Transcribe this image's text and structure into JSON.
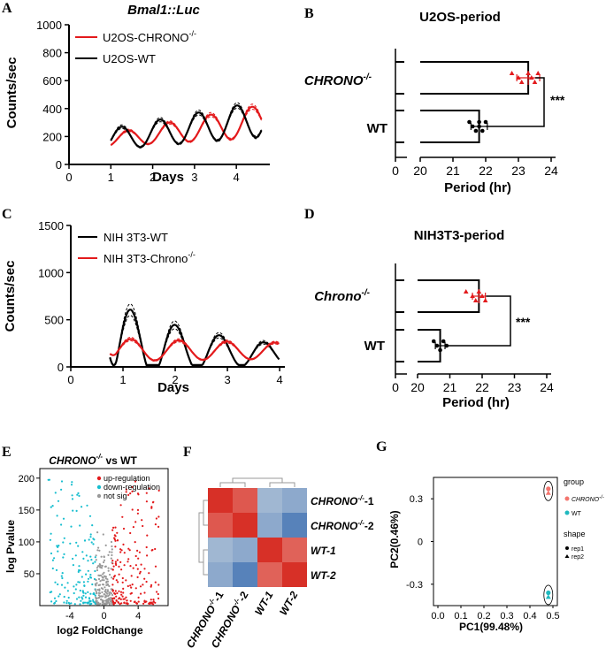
{
  "colors": {
    "red": "#e31a1c",
    "black": "#000000",
    "cyan": "#17becf",
    "grey": "#999999",
    "salmon": "#f4756e",
    "teal": "#20b9bf"
  },
  "panels": {
    "A": "A",
    "B": "B",
    "C": "C",
    "D": "D",
    "E": "E",
    "F": "F",
    "G": "G"
  },
  "chart_data": [
    {
      "id": "A",
      "type": "line",
      "title": "Bmal1::Luc",
      "xlabel": "Days",
      "ylabel": "Counts/sec",
      "xlim": [
        0,
        4.8
      ],
      "ylim": [
        0,
        1000
      ],
      "xticks": [
        "0",
        "1",
        "2",
        "3",
        "4"
      ],
      "yticks": [
        "0",
        "200",
        "400",
        "600",
        "800",
        "1000"
      ],
      "legend": [
        "U2OS-CHRONO",
        "-/-",
        "U2OS-WT"
      ],
      "series": [
        {
          "name": "U2OS-CHRONO-/-",
          "color": "red",
          "baseline": 160,
          "trend": 30,
          "amp0": 90,
          "amp_growth": 40,
          "period_days": 0.99,
          "peak_day": 1.4,
          "start": 1.0,
          "end": 4.6
        },
        {
          "name": "U2OS-WT",
          "color": "black",
          "baseline": 155,
          "trend": 35,
          "amp0": 150,
          "amp_growth": 30,
          "period_days": 0.92,
          "peak_day": 1.25,
          "start": 1.0,
          "end": 4.6
        }
      ]
    },
    {
      "id": "B",
      "type": "bar",
      "title": "U2OS-period",
      "xlabel": "Period (hr)",
      "xlim": [
        20,
        24
      ],
      "xticks": [
        "0",
        "20",
        "21",
        "22",
        "23",
        "24"
      ],
      "categories": [
        "CHRONO",
        "WT"
      ],
      "category_sup": [
        "-/-",
        ""
      ],
      "values": [
        23.3,
        21.8
      ],
      "errors": [
        0.35,
        0.25
      ],
      "points": [
        [
          22.8,
          23.0,
          23.1,
          23.3,
          23.4,
          23.5,
          23.6
        ],
        [
          21.5,
          21.6,
          21.7,
          21.8,
          21.8,
          21.9,
          22.0
        ]
      ],
      "significance": "***"
    },
    {
      "id": "C",
      "type": "line",
      "xlabel": "Days",
      "ylabel": "Counts/sec",
      "xlim": [
        0,
        4.1
      ],
      "ylim": [
        0,
        1500
      ],
      "xticks": [
        "0",
        "1",
        "2",
        "3",
        "4"
      ],
      "yticks": [
        "0",
        "500",
        "1000",
        "1500"
      ],
      "legend": [
        "NIH 3T3-WT",
        "NIH 3T3-Chrono",
        "-/-"
      ],
      "series": [
        {
          "name": "NIH 3T3-WT",
          "color": "black",
          "baseline": 100,
          "amp0": 750,
          "decay": 0.45,
          "period_days": 0.85,
          "peak_day": 1.15,
          "start": 0.75,
          "end": 4.0
        },
        {
          "name": "NIH 3T3-Chrono-/-",
          "color": "red",
          "baseline": 140,
          "amp0": 230,
          "decay": 0.1,
          "period_days": 0.92,
          "peak_day": 1.15,
          "start": 0.75,
          "end": 4.0
        }
      ]
    },
    {
      "id": "D",
      "type": "bar",
      "title": "NIH3T3-period",
      "xlabel": "Period (hr)",
      "xlim": [
        20,
        24
      ],
      "xticks": [
        "0",
        "20",
        "21",
        "22",
        "23",
        "24"
      ],
      "categories": [
        "Chrono",
        "WT"
      ],
      "category_sup": [
        "-/-",
        ""
      ],
      "values": [
        21.9,
        20.7
      ],
      "errors": [
        0.2,
        0.15
      ],
      "points": [
        [
          21.5,
          21.7,
          21.8,
          21.9,
          22.0,
          22.1
        ],
        [
          20.5,
          20.6,
          20.7,
          20.8,
          20.9
        ]
      ],
      "significance": "***"
    },
    {
      "id": "E",
      "type": "scatter",
      "title": "CHRONO",
      "title_sup": "-/-",
      "title_suffix": " vs WT",
      "xlabel": "log2 FoldChange",
      "ylabel": "log Pvalue",
      "xlim": [
        -7.5,
        7.5
      ],
      "ylim": [
        0,
        215
      ],
      "xticks": [
        "-4",
        "0",
        "4"
      ],
      "xtick_values": [
        -4,
        0,
        4
      ],
      "yticks": [
        "50",
        "100",
        "150",
        "200"
      ],
      "ytick_values": [
        50,
        100,
        150,
        200
      ],
      "legend": [
        "up-regulation",
        "down-regulation",
        "not sig"
      ]
    },
    {
      "id": "F",
      "type": "heatmap",
      "rows": [
        "CHRONO-/--1",
        "CHRONO-/--2",
        "WT-1",
        "WT-2"
      ],
      "row_labels": [
        [
          "CHRONO",
          "-/-",
          "-1"
        ],
        [
          "CHRONO",
          "-/-",
          "-2"
        ],
        [
          "WT-1",
          "",
          ""
        ],
        [
          "WT-2",
          "",
          ""
        ]
      ],
      "col_labels": [
        [
          "CHRONO",
          "-/-",
          "-1"
        ],
        [
          "CHRONO",
          "-/-",
          "-2"
        ],
        [
          "WT-1",
          "",
          ""
        ],
        [
          "WT-2",
          "",
          ""
        ]
      ],
      "values": [
        [
          1.0,
          0.8,
          -0.5,
          -0.6
        ],
        [
          0.8,
          1.0,
          -0.6,
          -0.9
        ],
        [
          -0.5,
          -0.6,
          1.0,
          0.75
        ],
        [
          -0.6,
          -0.9,
          0.75,
          1.0
        ]
      ]
    },
    {
      "id": "G",
      "type": "scatter",
      "xlabel": "PC1(99.48%)",
      "ylabel": "PC2(0.46%)",
      "xlim": [
        0,
        0.5
      ],
      "ylim": [
        -0.45,
        0.45
      ],
      "xticks": [
        "0.0",
        "0.1",
        "0.2",
        "0.3",
        "0.4",
        "0.5"
      ],
      "xtick_values": [
        0,
        0.1,
        0.2,
        0.3,
        0.4,
        0.5
      ],
      "yticks": [
        "0.3",
        "0",
        "-0.3"
      ],
      "ytick_values": [
        0.3,
        0,
        -0.3
      ],
      "points": [
        {
          "group": "CHRONO",
          "shape": "rep1",
          "x": 0.48,
          "y": 0.37
        },
        {
          "group": "CHRONO",
          "shape": "rep2",
          "x": 0.48,
          "y": 0.34
        },
        {
          "group": "WT",
          "shape": "rep1",
          "x": 0.48,
          "y": -0.36
        },
        {
          "group": "WT",
          "shape": "rep2",
          "x": 0.48,
          "y": -0.39
        }
      ],
      "legend_group_title": "group",
      "legend_groups": [
        [
          "CHRONO",
          "-/-"
        ],
        [
          "WT",
          ""
        ]
      ],
      "legend_shape_title": "shape",
      "legend_shapes": [
        "rep1",
        "rep2"
      ]
    }
  ]
}
